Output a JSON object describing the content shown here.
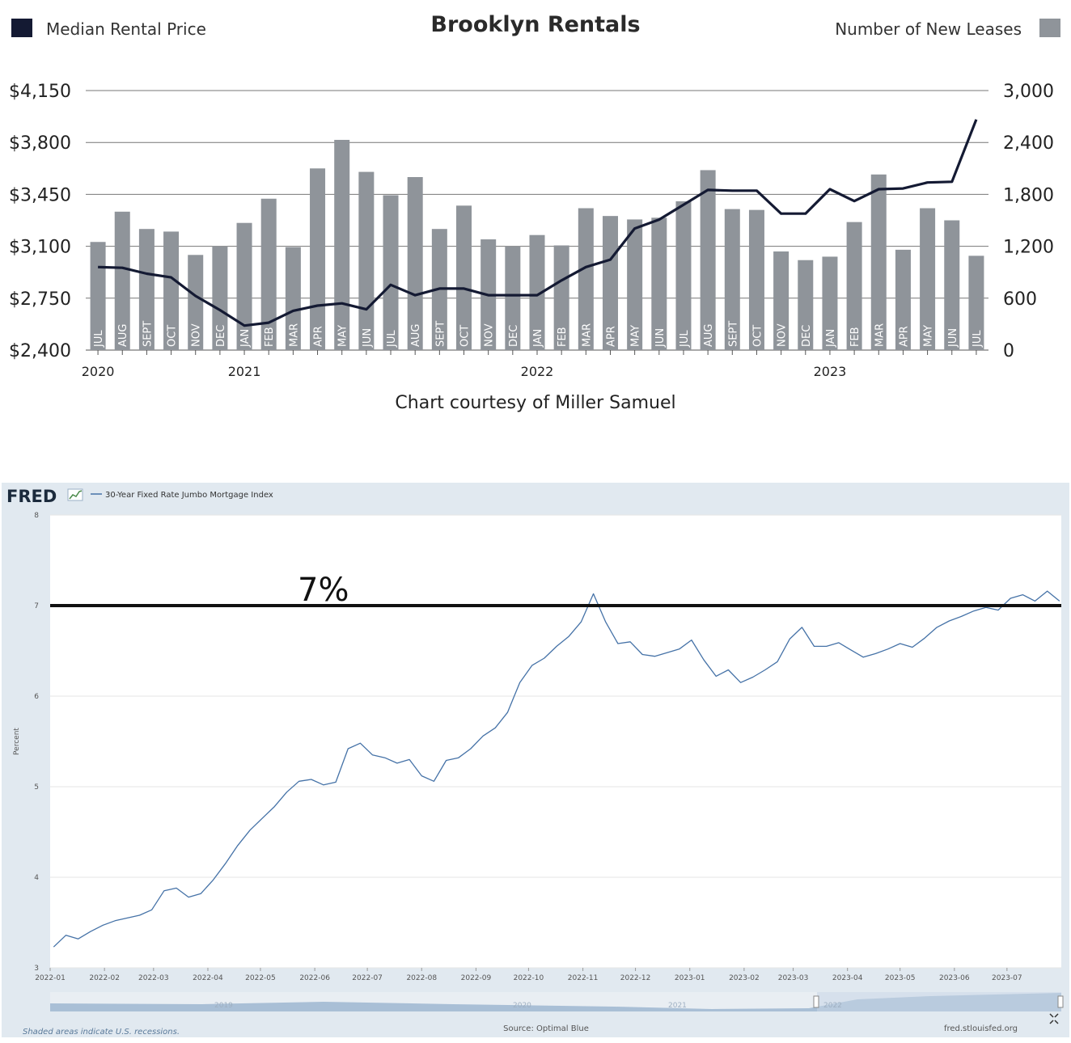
{
  "brooklyn": {
    "title": "Brooklyn Rentals",
    "legend_left": "Median Rental Price",
    "legend_right": "Number of New Leases",
    "credit": "Chart courtesy of Miller Samuel",
    "colors": {
      "bars": "#8f949a",
      "line": "#141a33",
      "legend_left": "#141a33",
      "legend_right": "#8f949a"
    }
  },
  "fred": {
    "logo": "FRED",
    "series_label": "30-Year Fixed Rate Jumbo Mortgage Index",
    "y_axis_label": "Percent",
    "annotation": "7%",
    "range_years": [
      "2019",
      "2020",
      "2021",
      "2022"
    ],
    "footer_left": "Shaded areas indicate U.S. recessions.",
    "footer_center": "Source: Optimal Blue",
    "footer_right": "fred.stlouisfed.org",
    "colors": {
      "line": "#4572a7",
      "plot_bg": "#ffffff",
      "frame_bg": "#e1e9f0"
    }
  },
  "chart_data": [
    {
      "type": "bar",
      "title": "Brooklyn Rentals",
      "categories": [
        "JUL",
        "AUG",
        "SEPT",
        "OCT",
        "NOV",
        "DEC",
        "JAN",
        "FEB",
        "MAR",
        "APR",
        "MAY",
        "JUN",
        "JUL",
        "AUG",
        "SEPT",
        "OCT",
        "NOV",
        "DEC",
        "JAN",
        "FEB",
        "MAR",
        "APR",
        "MAY",
        "JUN",
        "JUL",
        "AUG",
        "SEPT",
        "OCT",
        "NOV",
        "DEC",
        "JAN",
        "FEB",
        "MAR",
        "APR",
        "MAY",
        "JUN",
        "JUL"
      ],
      "year_labels": [
        {
          "label": "2020",
          "index": 0
        },
        {
          "label": "2021",
          "index": 6
        },
        {
          "label": "2022",
          "index": 18
        },
        {
          "label": "2023",
          "index": 30
        }
      ],
      "y_left": {
        "label": "Median Rental Price",
        "ticks": [
          "$2,400",
          "$2,750",
          "$3,100",
          "$3,450",
          "$3,800",
          "$4,150"
        ],
        "ylim": [
          2400,
          4150
        ]
      },
      "y_right": {
        "label": "Number of New Leases",
        "ticks": [
          "0",
          "600",
          "1,200",
          "1,800",
          "2,400",
          "3,000"
        ],
        "ylim": [
          0,
          3000
        ]
      },
      "series": [
        {
          "name": "Number of New Leases",
          "type": "bar",
          "axis": "right",
          "values": [
            1250,
            1600,
            1400,
            1370,
            1100,
            1200,
            1470,
            1750,
            1190,
            2100,
            2430,
            2060,
            1790,
            2000,
            1400,
            1670,
            1280,
            1200,
            1330,
            1210,
            1640,
            1550,
            1510,
            1530,
            1720,
            2080,
            1630,
            1620,
            1140,
            1040,
            1080,
            1480,
            2030,
            1160,
            1640,
            1500,
            1090
          ]
        },
        {
          "name": "Median Rental Price",
          "type": "line",
          "axis": "left",
          "values": [
            2960,
            2955,
            2915,
            2890,
            2765,
            2670,
            2565,
            2585,
            2665,
            2700,
            2715,
            2675,
            2840,
            2770,
            2815,
            2815,
            2770,
            2770,
            2770,
            2870,
            2960,
            3010,
            3220,
            3280,
            3380,
            3480,
            3475,
            3475,
            3320,
            3320,
            3485,
            3405,
            3485,
            3490,
            3530,
            3535,
            3955
          ]
        }
      ]
    },
    {
      "type": "line",
      "title": "",
      "series": [
        {
          "name": "30-Year Fixed Rate Jumbo Mortgage Index"
        }
      ],
      "ylabel": "Percent",
      "ylim": [
        3,
        8
      ],
      "yticks": [
        3,
        4,
        5,
        6,
        7,
        8
      ],
      "xlim": [
        "2022-01-01",
        "2023-08-01"
      ],
      "xticks": [
        "2022-01",
        "2022-02",
        "2022-03",
        "2022-04",
        "2022-05",
        "2022-06",
        "2022-07",
        "2022-08",
        "2022-09",
        "2022-10",
        "2022-11",
        "2022-12",
        "2023-01",
        "2023-02",
        "2023-03",
        "2023-04",
        "2023-05",
        "2023-06",
        "2023-07"
      ],
      "reference_line": {
        "y": 7,
        "label": "7%"
      },
      "points": [
        [
          "2022-01-03",
          3.23
        ],
        [
          "2022-01-10",
          3.36
        ],
        [
          "2022-01-17",
          3.32
        ],
        [
          "2022-01-24",
          3.4
        ],
        [
          "2022-01-31",
          3.47
        ],
        [
          "2022-02-07",
          3.52
        ],
        [
          "2022-02-14",
          3.55
        ],
        [
          "2022-02-21",
          3.58
        ],
        [
          "2022-02-28",
          3.64
        ],
        [
          "2022-03-07",
          3.85
        ],
        [
          "2022-03-14",
          3.88
        ],
        [
          "2022-03-21",
          3.78
        ],
        [
          "2022-03-28",
          3.82
        ],
        [
          "2022-04-04",
          3.97
        ],
        [
          "2022-04-11",
          4.15
        ],
        [
          "2022-04-18",
          4.35
        ],
        [
          "2022-04-25",
          4.52
        ],
        [
          "2022-05-02",
          4.65
        ],
        [
          "2022-05-09",
          4.78
        ],
        [
          "2022-05-16",
          4.94
        ],
        [
          "2022-05-23",
          5.06
        ],
        [
          "2022-05-30",
          5.08
        ],
        [
          "2022-06-06",
          5.02
        ],
        [
          "2022-06-13",
          5.05
        ],
        [
          "2022-06-20",
          5.42
        ],
        [
          "2022-06-27",
          5.48
        ],
        [
          "2022-07-04",
          5.35
        ],
        [
          "2022-07-11",
          5.32
        ],
        [
          "2022-07-18",
          5.26
        ],
        [
          "2022-07-25",
          5.3
        ],
        [
          "2022-08-01",
          5.12
        ],
        [
          "2022-08-08",
          5.06
        ],
        [
          "2022-08-15",
          5.29
        ],
        [
          "2022-08-22",
          5.32
        ],
        [
          "2022-08-29",
          5.42
        ],
        [
          "2022-09-05",
          5.56
        ],
        [
          "2022-09-12",
          5.65
        ],
        [
          "2022-09-19",
          5.82
        ],
        [
          "2022-09-26",
          6.15
        ],
        [
          "2022-10-03",
          6.34
        ],
        [
          "2022-10-10",
          6.42
        ],
        [
          "2022-10-17",
          6.55
        ],
        [
          "2022-10-24",
          6.66
        ],
        [
          "2022-10-31",
          6.82
        ],
        [
          "2022-11-07",
          7.13
        ],
        [
          "2022-11-14",
          6.82
        ],
        [
          "2022-11-21",
          6.58
        ],
        [
          "2022-11-28",
          6.6
        ],
        [
          "2022-12-05",
          6.46
        ],
        [
          "2022-12-12",
          6.44
        ],
        [
          "2022-12-19",
          6.48
        ],
        [
          "2022-12-26",
          6.52
        ],
        [
          "2023-01-02",
          6.62
        ],
        [
          "2023-01-09",
          6.4
        ],
        [
          "2023-01-16",
          6.22
        ],
        [
          "2023-01-23",
          6.29
        ],
        [
          "2023-01-30",
          6.15
        ],
        [
          "2023-02-06",
          6.21
        ],
        [
          "2023-02-13",
          6.29
        ],
        [
          "2023-02-20",
          6.38
        ],
        [
          "2023-02-27",
          6.63
        ],
        [
          "2023-03-06",
          6.76
        ],
        [
          "2023-03-13",
          6.55
        ],
        [
          "2023-03-20",
          6.55
        ],
        [
          "2023-03-27",
          6.59
        ],
        [
          "2023-04-03",
          6.51
        ],
        [
          "2023-04-10",
          6.43
        ],
        [
          "2023-04-17",
          6.47
        ],
        [
          "2023-04-24",
          6.52
        ],
        [
          "2023-05-01",
          6.58
        ],
        [
          "2023-05-08",
          6.54
        ],
        [
          "2023-05-15",
          6.64
        ],
        [
          "2023-05-22",
          6.76
        ],
        [
          "2023-05-29",
          6.83
        ],
        [
          "2023-06-05",
          6.88
        ],
        [
          "2023-06-12",
          6.94
        ],
        [
          "2023-06-19",
          6.98
        ],
        [
          "2023-06-26",
          6.95
        ],
        [
          "2023-07-03",
          7.08
        ],
        [
          "2023-07-10",
          7.12
        ],
        [
          "2023-07-17",
          7.05
        ],
        [
          "2023-07-24",
          7.16
        ],
        [
          "2023-07-31",
          7.05
        ]
      ]
    }
  ]
}
